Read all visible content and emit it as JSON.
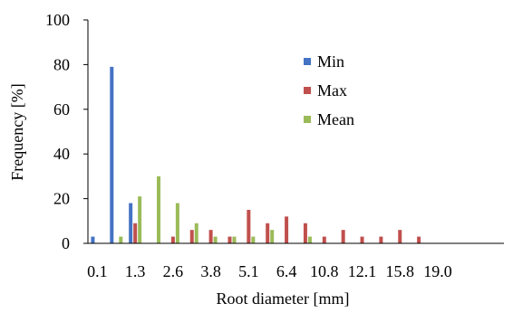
{
  "chart_data": {
    "type": "bar",
    "title": "",
    "xlabel": "Root diameter [mm]",
    "ylabel": "Frequency [%]",
    "ylim": [
      0,
      100
    ],
    "yticks": [
      0,
      20,
      40,
      60,
      80,
      100
    ],
    "grid": false,
    "legend_position": "top-right",
    "bins": 22,
    "tick_labels": [
      "0.1",
      "1.3",
      "2.6",
      "3.8",
      "5.1",
      "6.4",
      "10.8",
      "12.1",
      "15.8",
      "19.0"
    ],
    "series": [
      {
        "name": "Min",
        "color": "#4472C4",
        "values": [
          3,
          79,
          18,
          0,
          0,
          0,
          0,
          0,
          0,
          0,
          0,
          0,
          0,
          0,
          0,
          0,
          0,
          0,
          0,
          0,
          0,
          0
        ]
      },
      {
        "name": "Max",
        "color": "#C0504D",
        "values": [
          0,
          0,
          9,
          0,
          3,
          6,
          6,
          3,
          15,
          9,
          12,
          9,
          3,
          6,
          3,
          3,
          6,
          3,
          0,
          0,
          0,
          0
        ]
      },
      {
        "name": "Mean",
        "color": "#9BBB59",
        "values": [
          0,
          3,
          21,
          30,
          18,
          9,
          3,
          3,
          3,
          6,
          0,
          3,
          0,
          0,
          0,
          0,
          0,
          0,
          0,
          0,
          0,
          0
        ]
      }
    ]
  }
}
